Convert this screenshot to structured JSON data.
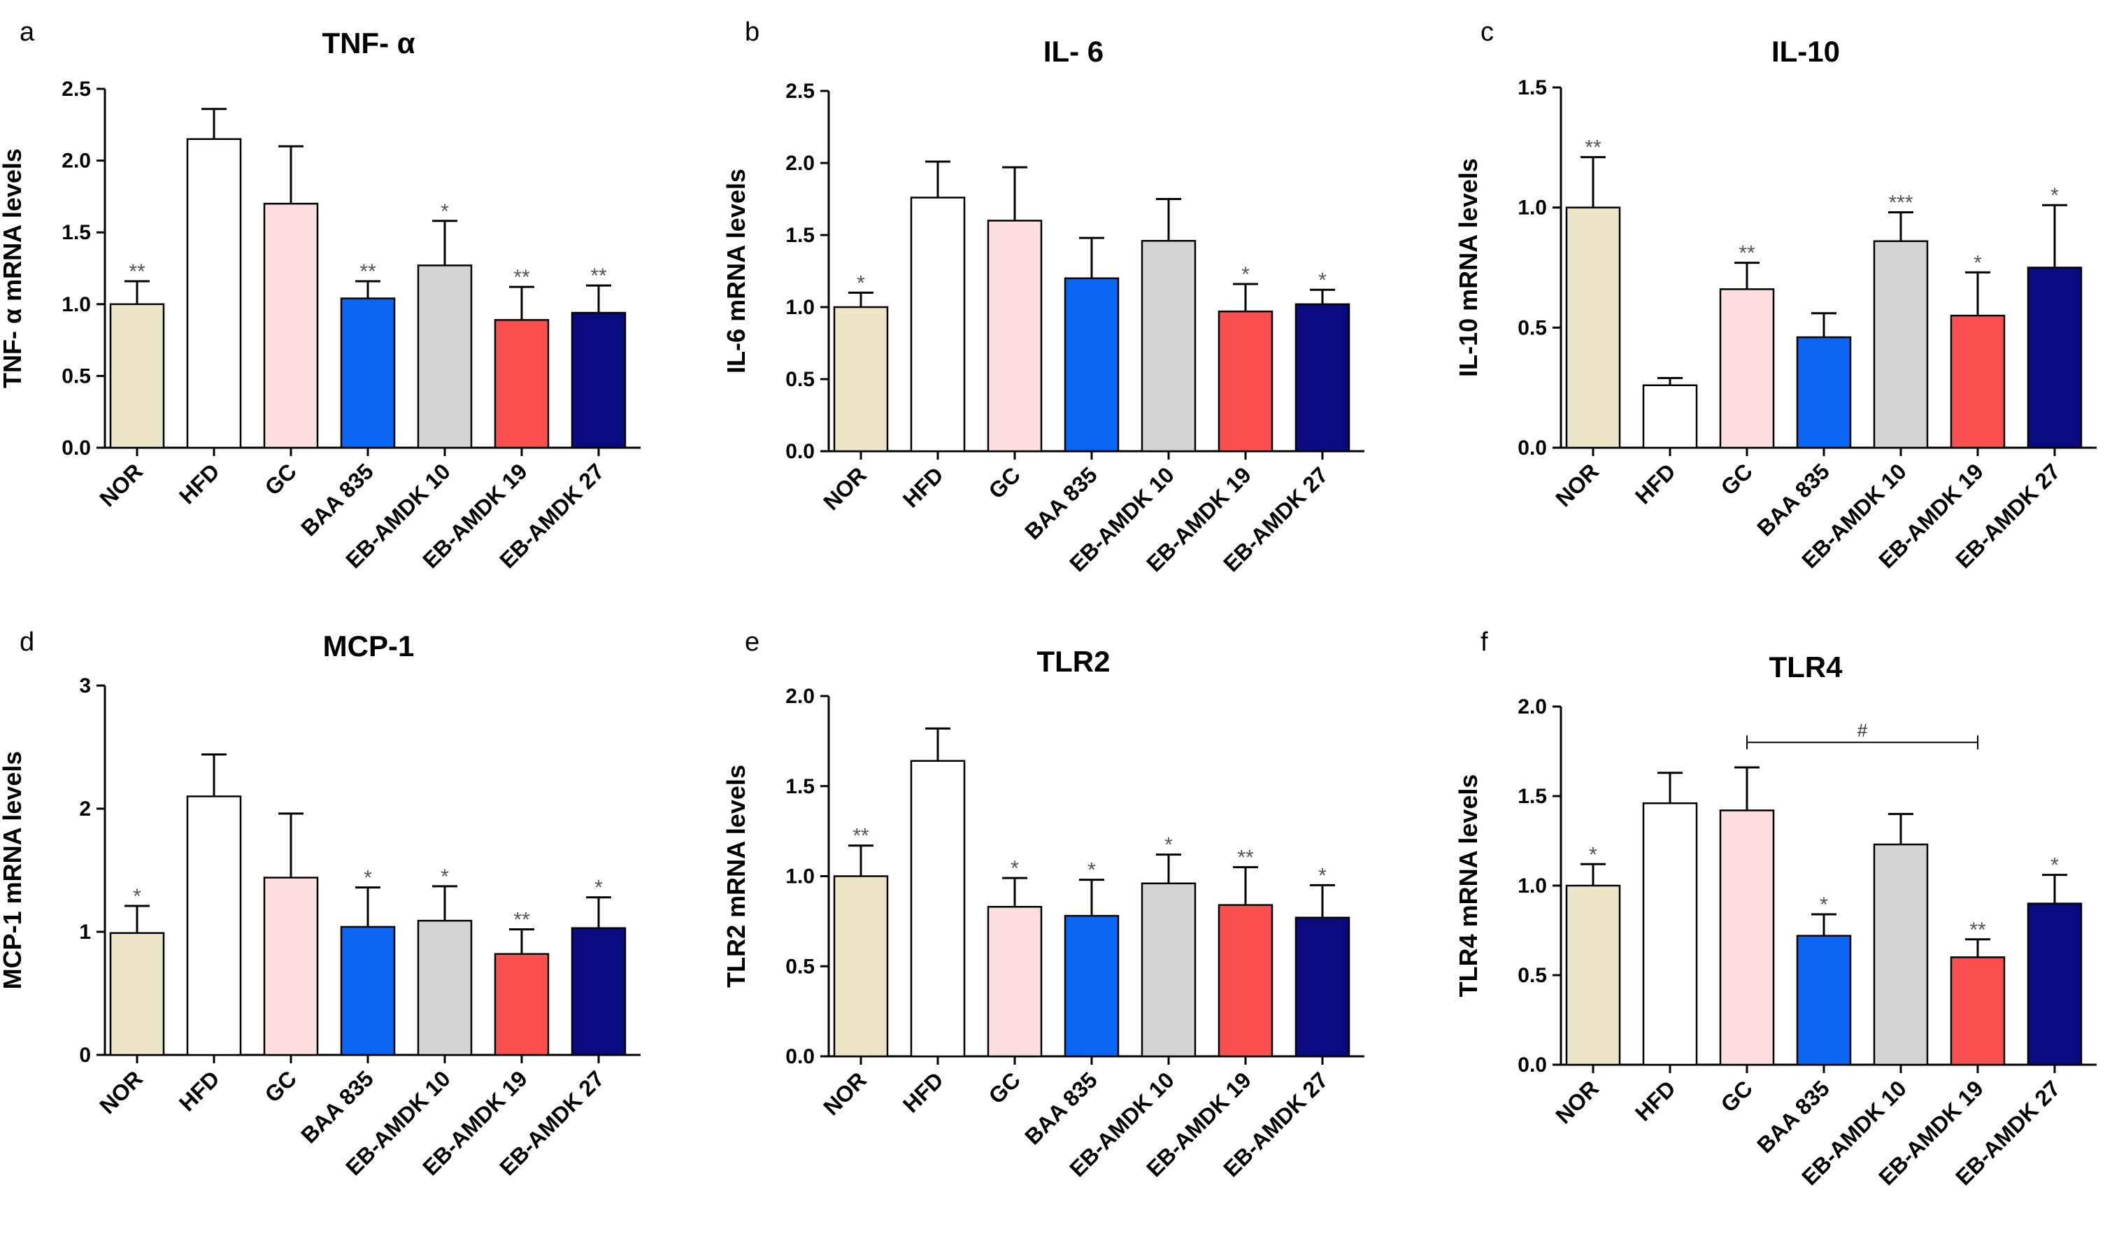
{
  "categories": [
    "NOR",
    "HFD",
    "GC",
    "BAA 835",
    "EB-AMDK 10",
    "EB-AMDK 19",
    "EB-AMDK 27"
  ],
  "colors": [
    "#ede5c8",
    "#ffffff",
    "#fddfe0",
    "#0a66f2",
    "#d4d4d4",
    "#fa5050",
    "#0a0a80"
  ],
  "chart_data": [
    {
      "type": "bar",
      "letter": "a",
      "title": "TNF- α",
      "ylabel": "TNF- α mRNA levels",
      "ylim": [
        0,
        2.5
      ],
      "yticks": [
        "0.0",
        "0.5",
        "1.0",
        "1.5",
        "2.0",
        "2.5"
      ],
      "values": [
        1.0,
        2.15,
        1.7,
        1.04,
        1.27,
        0.89,
        0.94
      ],
      "errors": [
        0.16,
        0.21,
        0.4,
        0.12,
        0.31,
        0.23,
        0.19
      ],
      "sig": [
        "**",
        "",
        "",
        "**",
        "*",
        "**",
        "**"
      ]
    },
    {
      "type": "bar",
      "letter": "b",
      "title": "IL- 6",
      "ylabel": "IL-6 mRNA levels",
      "ylim": [
        0,
        2.5
      ],
      "yticks": [
        "0.0",
        "0.5",
        "1.0",
        "1.5",
        "2.0",
        "2.5"
      ],
      "values": [
        1.0,
        1.76,
        1.6,
        1.2,
        1.46,
        0.97,
        1.02
      ],
      "errors": [
        0.1,
        0.25,
        0.37,
        0.28,
        0.29,
        0.19,
        0.1
      ],
      "sig": [
        "*",
        "",
        "",
        "",
        "",
        "*",
        "*"
      ]
    },
    {
      "type": "bar",
      "letter": "c",
      "title": "IL-10",
      "ylabel": "IL-10 mRNA levels",
      "ylim": [
        0,
        1.5
      ],
      "yticks": [
        "0.0",
        "0.5",
        "1.0",
        "1.5"
      ],
      "values": [
        1.0,
        0.26,
        0.66,
        0.46,
        0.86,
        0.55,
        0.75
      ],
      "errors": [
        0.21,
        0.03,
        0.11,
        0.1,
        0.12,
        0.18,
        0.26
      ],
      "sig": [
        "**",
        "",
        "**",
        "",
        "***",
        "*",
        "*"
      ]
    },
    {
      "type": "bar",
      "letter": "d",
      "title": "MCP-1",
      "ylabel": "MCP-1 mRNA levels",
      "ylim": [
        0,
        3
      ],
      "yticks": [
        "0",
        "1",
        "2",
        "3"
      ],
      "values": [
        0.99,
        2.1,
        1.44,
        1.04,
        1.09,
        0.82,
        1.03
      ],
      "errors": [
        0.22,
        0.34,
        0.52,
        0.32,
        0.28,
        0.2,
        0.25
      ],
      "sig": [
        "*",
        "",
        "",
        "*",
        "*",
        "**",
        "*"
      ]
    },
    {
      "type": "bar",
      "letter": "e",
      "title": "TLR2",
      "ylabel": "TLR2 mRNA levels",
      "ylim": [
        0,
        2.0
      ],
      "yticks": [
        "0.0",
        "0.5",
        "1.0",
        "1.5",
        "2.0"
      ],
      "values": [
        1.0,
        1.64,
        0.83,
        0.78,
        0.96,
        0.84,
        0.77
      ],
      "errors": [
        0.17,
        0.18,
        0.16,
        0.2,
        0.16,
        0.21,
        0.18
      ],
      "sig": [
        "**",
        "",
        "*",
        "*",
        "*",
        "**",
        "*"
      ]
    },
    {
      "type": "bar",
      "letter": "f",
      "title": "TLR4",
      "ylabel": "TLR4 mRNA levels",
      "ylim": [
        0,
        2.0
      ],
      "yticks": [
        "0.0",
        "0.5",
        "1.0",
        "1.5",
        "2.0"
      ],
      "values": [
        1.0,
        1.46,
        1.42,
        0.72,
        1.23,
        0.6,
        0.9
      ],
      "errors": [
        0.12,
        0.17,
        0.24,
        0.12,
        0.17,
        0.1,
        0.16
      ],
      "sig": [
        "*",
        "",
        "",
        "*",
        "",
        "**",
        "*"
      ],
      "bracket": {
        "from": 2,
        "to": 5,
        "y": 1.8,
        "label": "#"
      }
    }
  ]
}
